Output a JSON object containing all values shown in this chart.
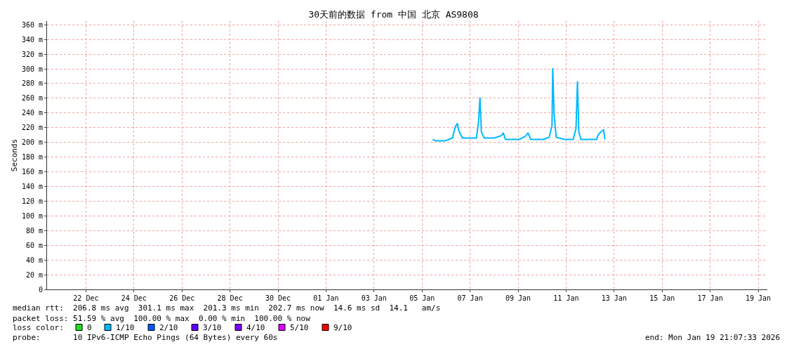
{
  "chart_data": {
    "type": "line",
    "title": "30天前的数据 from 中国 北京 AS9808",
    "ylabel": "Seconds",
    "legend_title": "loss color:",
    "x": [
      "2026-01-05T22:35",
      "2026-01-06T02:07",
      "2026-01-06T10:35",
      "2026-01-06T14:50",
      "2026-01-06T18:21",
      "2026-01-06T21:10",
      "2026-01-06T23:18",
      "2026-01-07T00:42",
      "2026-01-07T04:14",
      "2026-01-07T11:18",
      "2026-01-07T18:21",
      "2026-01-07T20:28",
      "2026-01-07T21:53",
      "2026-01-07T23:18",
      "2026-01-08T02:07",
      "2026-01-08T12:00",
      "2026-01-08T19:04",
      "2026-01-08T21:10",
      "2026-01-08T23:18",
      "2026-01-09T02:07",
      "2026-01-09T12:42",
      "2026-01-09T16:14",
      "2026-01-09T19:46",
      "2026-01-09T21:53",
      "2026-01-10T00:42",
      "2026-01-10T13:25",
      "2026-01-10T19:04",
      "2026-01-10T21:53",
      "2026-01-10T22:35",
      "2026-01-11T00:00",
      "2026-01-11T02:07",
      "2026-01-11T10:35",
      "2026-01-11T19:04",
      "2026-01-11T21:53",
      "2026-01-11T23:18",
      "2026-01-12T00:42",
      "2026-01-12T02:50",
      "2026-01-12T18:21",
      "2026-01-12T20:28",
      "2026-01-12T23:18",
      "2026-01-13T01:25",
      "2026-01-13T02:50"
    ],
    "series": [
      {
        "name": "0",
        "color": "#22dd22",
        "values": [
          null,
          null,
          null,
          null,
          null,
          null,
          null,
          null,
          null,
          null,
          null,
          null,
          null,
          null,
          null,
          null,
          null,
          null,
          null,
          null,
          null,
          null,
          null,
          null,
          null,
          null,
          null,
          null,
          null,
          null,
          null,
          null,
          null,
          null,
          null,
          null,
          null,
          null,
          null,
          null,
          null,
          null
        ]
      },
      {
        "name": "1/10",
        "color": "#00b8ff",
        "values": [
          204,
          202,
          202,
          204,
          206,
          221,
          226,
          216,
          206,
          206,
          206,
          228,
          261,
          214,
          206,
          206,
          209,
          213,
          204,
          204,
          204,
          206,
          209,
          213,
          204,
          204,
          207,
          223,
          301,
          237,
          207,
          204,
          204,
          219,
          283,
          214,
          204,
          204,
          211,
          215,
          217,
          204
        ]
      },
      {
        "name": "2/10",
        "color": "#0059ff",
        "values": [
          null,
          null,
          null,
          null,
          null,
          null,
          null,
          null,
          null,
          null,
          null,
          null,
          null,
          null,
          null,
          null,
          null,
          null,
          null,
          null,
          null,
          null,
          null,
          null,
          null,
          null,
          null,
          null,
          null,
          null,
          null,
          null,
          null,
          null,
          null,
          null,
          null,
          null,
          null,
          null,
          null,
          null
        ]
      },
      {
        "name": "3/10",
        "color": "#5e00ff",
        "values": [
          null,
          null,
          null,
          null,
          null,
          null,
          null,
          null,
          null,
          null,
          null,
          null,
          null,
          null,
          null,
          null,
          null,
          null,
          null,
          null,
          null,
          null,
          null,
          null,
          null,
          null,
          null,
          null,
          null,
          null,
          null,
          null,
          null,
          null,
          null,
          null,
          null,
          null,
          null,
          null,
          null,
          null
        ]
      },
      {
        "name": "4/10",
        "color": "#7e00ff",
        "values": [
          null,
          null,
          null,
          null,
          null,
          null,
          null,
          null,
          null,
          null,
          null,
          null,
          null,
          null,
          null,
          null,
          null,
          null,
          null,
          null,
          null,
          null,
          null,
          null,
          null,
          null,
          null,
          null,
          null,
          null,
          null,
          null,
          null,
          null,
          null,
          null,
          null,
          null,
          null,
          null,
          null,
          null
        ]
      },
      {
        "name": "5/10",
        "color": "#dd00ff",
        "values": [
          null,
          null,
          null,
          null,
          null,
          null,
          null,
          null,
          null,
          null,
          null,
          null,
          null,
          null,
          null,
          null,
          null,
          null,
          null,
          null,
          null,
          null,
          null,
          null,
          null,
          null,
          null,
          null,
          null,
          null,
          null,
          null,
          null,
          null,
          null,
          null,
          null,
          null,
          null,
          null,
          null,
          null
        ]
      },
      {
        "name": "9/10",
        "color": "#ff0000",
        "values": [
          null,
          null,
          null,
          null,
          null,
          null,
          null,
          null,
          null,
          null,
          null,
          null,
          null,
          null,
          null,
          null,
          null,
          null,
          null,
          null,
          null,
          null,
          null,
          null,
          null,
          null,
          null,
          null,
          null,
          null,
          null,
          null,
          null,
          null,
          null,
          null,
          null,
          null,
          null,
          null,
          null,
          null
        ]
      }
    ],
    "xlim": [
      "2025-12-20T21:07",
      "2026-01-19T21:07"
    ],
    "xticks": [
      {
        "value": "2025-12-22T12:00",
        "label": "22 Dec"
      },
      {
        "value": "2025-12-24T12:00",
        "label": "24 Dec"
      },
      {
        "value": "2025-12-26T12:00",
        "label": "26 Dec"
      },
      {
        "value": "2025-12-28T12:00",
        "label": "28 Dec"
      },
      {
        "value": "2025-12-30T12:00",
        "label": "30 Dec"
      },
      {
        "value": "2026-01-01T12:00",
        "label": "01 Jan"
      },
      {
        "value": "2026-01-03T12:00",
        "label": "03 Jan"
      },
      {
        "value": "2026-01-05T12:00",
        "label": "05 Jan"
      },
      {
        "value": "2026-01-07T12:00",
        "label": "07 Jan"
      },
      {
        "value": "2026-01-09T12:00",
        "label": "09 Jan"
      },
      {
        "value": "2026-01-11T12:00",
        "label": "11 Jan"
      },
      {
        "value": "2026-01-13T12:00",
        "label": "13 Jan"
      },
      {
        "value": "2026-01-15T12:00",
        "label": "15 Jan"
      },
      {
        "value": "2026-01-17T12:00",
        "label": "17 Jan"
      },
      {
        "value": "2026-01-19T12:00",
        "label": "19 Jan"
      }
    ],
    "ylim": [
      0,
      365
    ],
    "yticks": [
      0,
      {
        "value": 20,
        "label": "20 m"
      },
      {
        "value": 40,
        "label": "40 m"
      },
      {
        "value": 60,
        "label": "60 m"
      },
      {
        "value": 80,
        "label": "80 m"
      },
      {
        "value": 100,
        "label": "100 m"
      },
      {
        "value": 120,
        "label": "120 m"
      },
      {
        "value": 140,
        "label": "140 m"
      },
      {
        "value": 160,
        "label": "160 m"
      },
      {
        "value": 180,
        "label": "180 m"
      },
      {
        "value": 200,
        "label": "200 m"
      },
      {
        "value": 220,
        "label": "220 m"
      },
      {
        "value": 240,
        "label": "240 m"
      },
      {
        "value": 260,
        "label": "260 m"
      },
      {
        "value": 280,
        "label": "280 m"
      },
      {
        "value": 300,
        "label": "300 m"
      },
      {
        "value": 320,
        "label": "320 m"
      },
      {
        "value": 340,
        "label": "340 m"
      },
      {
        "value": 360,
        "label": "360 m"
      }
    ],
    "grid": true,
    "legend": "bottom",
    "marker": "none",
    "line_style": "solid",
    "annotations": [
      "median rtt:  206.8 ms avg  301.1 ms max  201.3 ms min  202.7 ms now  14.6 ms sd  14.1   am/s",
      "packet loss: 51.59 % avg  100.00 % max  0.00 % min  100.00 % now",
      "probe:       10 IPv6-ICMP Echo Pings (64 Bytes) every 60s",
      "end: Mon Jan 19 21:07:33 2026"
    ]
  }
}
